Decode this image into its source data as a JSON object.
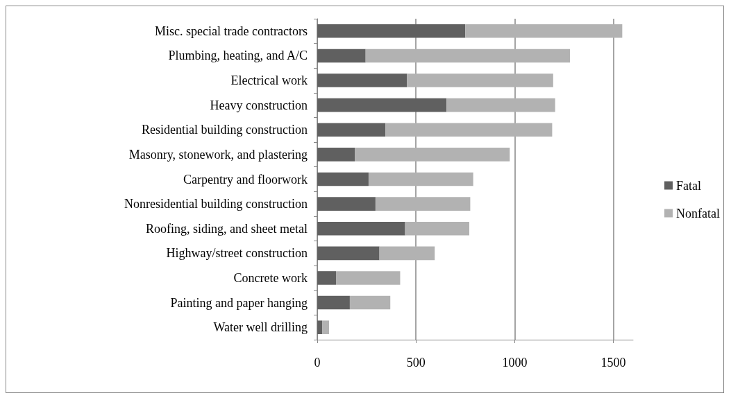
{
  "chart_data": {
    "type": "bar",
    "orientation": "horizontal",
    "stacked": true,
    "categories": [
      "Misc. special trade contractors",
      "Plumbing, heating, and A/C",
      "Electrical work",
      "Heavy construction",
      "Residential building construction",
      "Masonry, stonework, and plastering",
      "Carpentry and floorwork",
      "Nonresidential building construction",
      "Roofing, siding, and sheet metal",
      "Highway/street construction",
      "Concrete work",
      "Painting and paper hanging",
      "Water well drilling"
    ],
    "series": [
      {
        "name": "Fatal",
        "color": "#606060",
        "values": [
          750,
          245,
          455,
          655,
          345,
          190,
          260,
          295,
          445,
          315,
          95,
          165,
          25
        ]
      },
      {
        "name": "Nonfatal",
        "color": "#b2b2b2",
        "values": [
          795,
          1035,
          740,
          550,
          845,
          785,
          530,
          480,
          325,
          280,
          325,
          205,
          35
        ]
      }
    ],
    "xlim": [
      0,
      1600
    ],
    "xticks": [
      0,
      500,
      1000,
      1500
    ],
    "grid": "x",
    "legend": "right"
  }
}
